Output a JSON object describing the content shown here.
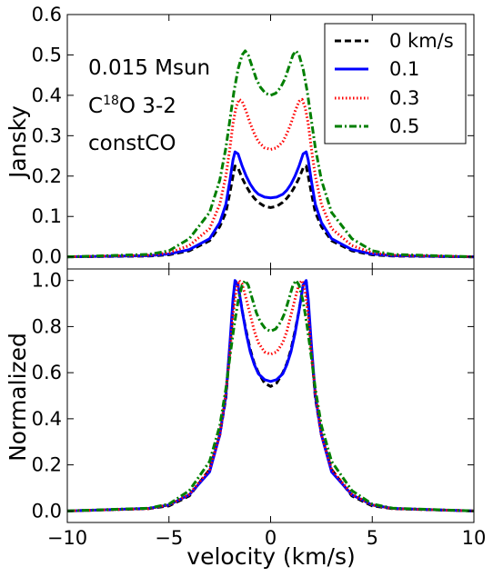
{
  "chart_data": [
    {
      "type": "line",
      "ylabel": "Jansky",
      "xlim": [
        -10,
        10
      ],
      "ylim": [
        -0.03,
        0.6
      ],
      "yticks": [
        "0.0",
        "0.1",
        "0.2",
        "0.3",
        "0.4",
        "0.5",
        "0.6"
      ],
      "annotations": {
        "mass": "0.015 Msun",
        "molecule_prefix": "C",
        "molecule_isotope": "18",
        "molecule_suffix": "O 3-2",
        "model": "constCO"
      },
      "legend_position": "top-right",
      "series": [
        {
          "name": "0 km/s",
          "color": "#000000",
          "style": "dashed",
          "x": [
            -10,
            -6,
            -5,
            -4,
            -3,
            -2.5,
            -2.2,
            -2.0,
            -1.85,
            -1.75,
            -1.6,
            -1.4,
            -1.2,
            -1.0,
            -0.8,
            -0.6,
            -0.3,
            0,
            0.3,
            0.6,
            0.8,
            1.0,
            1.2,
            1.4,
            1.6,
            1.75,
            1.85,
            2.0,
            2.2,
            2.5,
            3,
            4,
            5,
            6,
            10
          ],
          "y": [
            0,
            0.002,
            0.005,
            0.015,
            0.04,
            0.075,
            0.11,
            0.16,
            0.2,
            0.225,
            0.22,
            0.195,
            0.175,
            0.158,
            0.145,
            0.135,
            0.125,
            0.122,
            0.125,
            0.135,
            0.145,
            0.158,
            0.175,
            0.195,
            0.22,
            0.225,
            0.2,
            0.16,
            0.11,
            0.075,
            0.04,
            0.015,
            0.005,
            0.002,
            0
          ]
        },
        {
          "name": "0.1",
          "color": "#0000ff",
          "style": "solid",
          "x": [
            -10,
            -6,
            -5,
            -4,
            -3,
            -2.5,
            -2.2,
            -2.0,
            -1.85,
            -1.75,
            -1.6,
            -1.4,
            -1.2,
            -1.0,
            -0.8,
            -0.6,
            -0.3,
            0,
            0.3,
            0.6,
            0.8,
            1.0,
            1.2,
            1.4,
            1.6,
            1.75,
            1.85,
            2.0,
            2.2,
            2.5,
            3,
            4,
            5,
            6,
            10
          ],
          "y": [
            0,
            0.003,
            0.007,
            0.018,
            0.045,
            0.085,
            0.13,
            0.19,
            0.24,
            0.26,
            0.255,
            0.225,
            0.2,
            0.18,
            0.165,
            0.155,
            0.148,
            0.146,
            0.148,
            0.155,
            0.165,
            0.18,
            0.2,
            0.225,
            0.255,
            0.26,
            0.24,
            0.19,
            0.13,
            0.085,
            0.045,
            0.018,
            0.007,
            0.003,
            0
          ]
        },
        {
          "name": "0.3",
          "color": "#ff0000",
          "style": "dotted",
          "x": [
            -10,
            -6,
            -5,
            -4,
            -3,
            -2.5,
            -2.2,
            -2.0,
            -1.85,
            -1.7,
            -1.55,
            -1.4,
            -1.2,
            -1.0,
            -0.8,
            -0.6,
            -0.3,
            0,
            0.3,
            0.6,
            0.8,
            1.0,
            1.2,
            1.4,
            1.55,
            1.7,
            1.85,
            2.0,
            2.2,
            2.5,
            3,
            4,
            5,
            6,
            10
          ],
          "y": [
            0,
            0.004,
            0.01,
            0.028,
            0.07,
            0.13,
            0.2,
            0.27,
            0.33,
            0.37,
            0.39,
            0.385,
            0.36,
            0.33,
            0.305,
            0.285,
            0.27,
            0.266,
            0.27,
            0.285,
            0.305,
            0.33,
            0.36,
            0.385,
            0.39,
            0.37,
            0.33,
            0.27,
            0.2,
            0.13,
            0.07,
            0.028,
            0.01,
            0.004,
            0
          ]
        },
        {
          "name": "0.5",
          "color": "#007f00",
          "style": "dashdot",
          "x": [
            -10,
            -6,
            -5,
            -4,
            -3,
            -2.5,
            -2.2,
            -2.0,
            -1.8,
            -1.6,
            -1.4,
            -1.25,
            -1.1,
            -0.9,
            -0.7,
            -0.5,
            -0.25,
            0,
            0.25,
            0.5,
            0.7,
            0.9,
            1.1,
            1.25,
            1.4,
            1.6,
            1.8,
            2.0,
            2.2,
            2.5,
            3,
            4,
            5,
            6,
            10
          ],
          "y": [
            0,
            0.006,
            0.015,
            0.045,
            0.11,
            0.19,
            0.27,
            0.34,
            0.41,
            0.465,
            0.5,
            0.51,
            0.5,
            0.47,
            0.44,
            0.42,
            0.405,
            0.4,
            0.405,
            0.42,
            0.44,
            0.47,
            0.5,
            0.51,
            0.5,
            0.465,
            0.41,
            0.34,
            0.27,
            0.19,
            0.11,
            0.045,
            0.015,
            0.006,
            0
          ]
        }
      ]
    },
    {
      "type": "line",
      "xlabel": "velocity (km/s)",
      "ylabel": "Normalized",
      "xlim": [
        -10,
        10
      ],
      "ylim": [
        -0.05,
        1.05
      ],
      "xticks": [
        "−10",
        "−5",
        "0",
        "5",
        "10"
      ],
      "yticks": [
        "0.0",
        "0.2",
        "0.4",
        "0.6",
        "0.8",
        "1.0"
      ],
      "series": [
        {
          "name": "0 km/s",
          "color": "#000000",
          "style": "dashed",
          "x": [
            -10,
            -6,
            -5,
            -4,
            -3,
            -2.5,
            -2.2,
            -2.0,
            -1.85,
            -1.75,
            -1.6,
            -1.4,
            -1.2,
            -1.0,
            -0.8,
            -0.6,
            -0.3,
            0,
            0.3,
            0.6,
            0.8,
            1.0,
            1.2,
            1.4,
            1.6,
            1.75,
            1.85,
            2.0,
            2.2,
            2.5,
            3,
            4,
            5,
            6,
            10
          ],
          "y": [
            0,
            0.01,
            0.022,
            0.065,
            0.18,
            0.33,
            0.49,
            0.71,
            0.89,
            1.0,
            0.98,
            0.87,
            0.78,
            0.7,
            0.64,
            0.6,
            0.555,
            0.54,
            0.555,
            0.6,
            0.64,
            0.7,
            0.78,
            0.87,
            0.98,
            1.0,
            0.89,
            0.71,
            0.49,
            0.33,
            0.18,
            0.065,
            0.022,
            0.01,
            0
          ]
        },
        {
          "name": "0.1",
          "color": "#0000ff",
          "style": "solid",
          "x": [
            -10,
            -6,
            -5,
            -4,
            -3,
            -2.5,
            -2.2,
            -2.0,
            -1.85,
            -1.75,
            -1.6,
            -1.4,
            -1.2,
            -1.0,
            -0.8,
            -0.6,
            -0.3,
            0,
            0.3,
            0.6,
            0.8,
            1.0,
            1.2,
            1.4,
            1.6,
            1.75,
            1.85,
            2.0,
            2.2,
            2.5,
            3,
            4,
            5,
            6,
            10
          ],
          "y": [
            0,
            0.011,
            0.026,
            0.07,
            0.17,
            0.33,
            0.5,
            0.73,
            0.92,
            1.0,
            0.98,
            0.87,
            0.77,
            0.69,
            0.635,
            0.595,
            0.57,
            0.562,
            0.57,
            0.595,
            0.635,
            0.69,
            0.77,
            0.87,
            0.98,
            1.0,
            0.92,
            0.73,
            0.5,
            0.33,
            0.17,
            0.07,
            0.026,
            0.011,
            0
          ]
        },
        {
          "name": "0.3",
          "color": "#ff0000",
          "style": "dotted",
          "x": [
            -10,
            -6,
            -5,
            -4,
            -3,
            -2.5,
            -2.2,
            -2.0,
            -1.85,
            -1.7,
            -1.55,
            -1.4,
            -1.2,
            -1.0,
            -0.8,
            -0.6,
            -0.3,
            0,
            0.3,
            0.6,
            0.8,
            1.0,
            1.2,
            1.4,
            1.55,
            1.7,
            1.85,
            2.0,
            2.2,
            2.5,
            3,
            4,
            5,
            6,
            10
          ],
          "y": [
            0,
            0.01,
            0.026,
            0.072,
            0.18,
            0.33,
            0.51,
            0.69,
            0.85,
            0.95,
            1.0,
            0.985,
            0.92,
            0.85,
            0.78,
            0.73,
            0.69,
            0.68,
            0.69,
            0.73,
            0.78,
            0.85,
            0.92,
            0.985,
            1.0,
            0.95,
            0.85,
            0.69,
            0.51,
            0.33,
            0.18,
            0.072,
            0.026,
            0.01,
            0
          ]
        },
        {
          "name": "0.5",
          "color": "#007f00",
          "style": "dashdot",
          "x": [
            -10,
            -6,
            -5,
            -4,
            -3,
            -2.5,
            -2.2,
            -2.0,
            -1.8,
            -1.6,
            -1.4,
            -1.25,
            -1.1,
            -0.9,
            -0.7,
            -0.5,
            -0.25,
            0,
            0.25,
            0.5,
            0.7,
            0.9,
            1.1,
            1.25,
            1.4,
            1.6,
            1.8,
            2.0,
            2.2,
            2.5,
            3,
            4,
            5,
            6,
            10
          ],
          "y": [
            0,
            0.012,
            0.03,
            0.088,
            0.215,
            0.37,
            0.53,
            0.67,
            0.8,
            0.91,
            0.98,
            1.0,
            0.98,
            0.92,
            0.86,
            0.82,
            0.79,
            0.78,
            0.79,
            0.82,
            0.86,
            0.92,
            0.98,
            1.0,
            0.98,
            0.91,
            0.8,
            0.67,
            0.53,
            0.37,
            0.215,
            0.088,
            0.03,
            0.012,
            0
          ]
        }
      ]
    }
  ]
}
